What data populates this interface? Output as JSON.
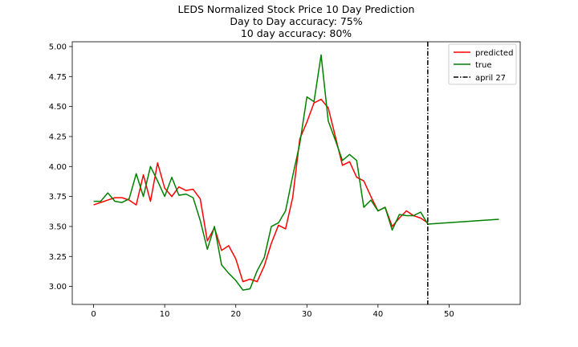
{
  "chart_data": {
    "type": "line",
    "title": [
      "LEDS Normalized Stock Price 10 Day Prediction",
      "Day to Day accuracy: 75%",
      "10 day accuracy: 80%"
    ],
    "xlabel": "",
    "ylabel": "",
    "xlim": [
      -3,
      60
    ],
    "ylim": [
      2.85,
      5.04
    ],
    "xticks": [
      0,
      10,
      20,
      30,
      40,
      50
    ],
    "yticks": [
      3.0,
      3.25,
      3.5,
      3.75,
      4.0,
      4.25,
      4.5,
      4.75,
      5.0
    ],
    "ytick_labels": [
      "3.00",
      "3.25",
      "3.50",
      "3.75",
      "4.00",
      "4.25",
      "4.50",
      "4.75",
      "5.00"
    ],
    "grid": false,
    "legend_position": "top-right",
    "series": [
      {
        "name": "predicted",
        "color": "#ff0000",
        "x": [
          0,
          1,
          2,
          3,
          4,
          5,
          6,
          7,
          8,
          9,
          10,
          11,
          12,
          13,
          14,
          15,
          16,
          17,
          18,
          19,
          20,
          21,
          22,
          23,
          24,
          25,
          26,
          27,
          28,
          29,
          30,
          31,
          32,
          33,
          34,
          35,
          36,
          37,
          38,
          39,
          40,
          41,
          42,
          43,
          44,
          45,
          46,
          47
        ],
        "y": [
          3.68,
          3.7,
          3.72,
          3.74,
          3.74,
          3.72,
          3.68,
          3.93,
          3.71,
          4.03,
          3.82,
          3.75,
          3.83,
          3.8,
          3.81,
          3.73,
          3.38,
          3.49,
          3.3,
          3.34,
          3.23,
          3.04,
          3.06,
          3.04,
          3.17,
          3.36,
          3.51,
          3.48,
          3.74,
          4.23,
          4.37,
          4.53,
          4.56,
          4.49,
          4.25,
          4.01,
          4.04,
          3.91,
          3.88,
          3.75,
          3.63,
          3.66,
          3.5,
          3.57,
          3.63,
          3.59,
          3.57,
          3.53
        ]
      },
      {
        "name": "true",
        "color": "#008000",
        "x": [
          0,
          1,
          2,
          3,
          4,
          5,
          6,
          7,
          8,
          9,
          10,
          11,
          12,
          13,
          14,
          15,
          16,
          17,
          18,
          19,
          20,
          21,
          22,
          23,
          24,
          25,
          26,
          27,
          28,
          29,
          30,
          31,
          32,
          33,
          34,
          35,
          36,
          37,
          38,
          39,
          40,
          41,
          42,
          43,
          44,
          45,
          46,
          47,
          57
        ],
        "y": [
          3.71,
          3.71,
          3.78,
          3.71,
          3.7,
          3.73,
          3.94,
          3.75,
          4.0,
          3.88,
          3.75,
          3.91,
          3.76,
          3.77,
          3.74,
          3.55,
          3.31,
          3.5,
          3.18,
          3.11,
          3.05,
          2.97,
          2.98,
          3.13,
          3.24,
          3.5,
          3.53,
          3.63,
          3.92,
          4.19,
          4.58,
          4.54,
          4.93,
          4.38,
          4.22,
          4.05,
          4.1,
          4.05,
          3.66,
          3.72,
          3.63,
          3.66,
          3.47,
          3.6,
          3.59,
          3.59,
          3.62,
          3.52,
          3.56
        ]
      }
    ],
    "vline": {
      "name": "april 27",
      "x": 47,
      "color": "#000000",
      "style": "dashdot"
    }
  }
}
